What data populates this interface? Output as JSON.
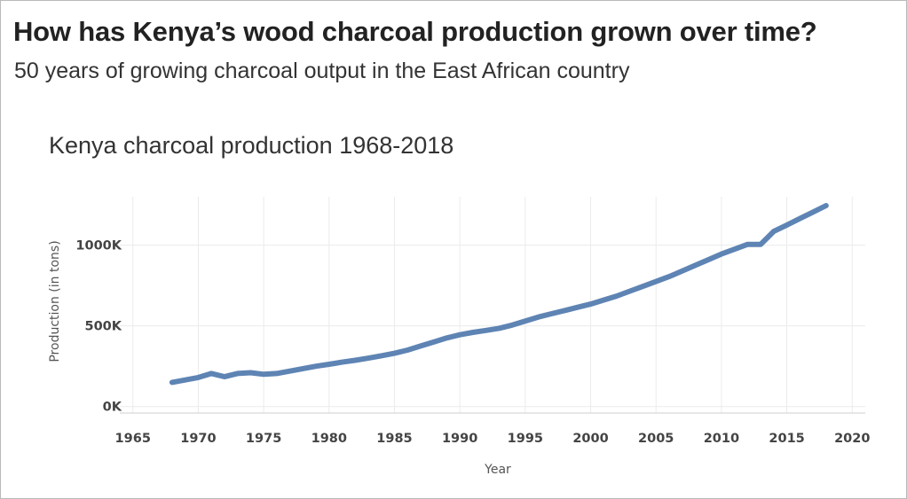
{
  "header": {
    "title": "How has Kenya’s wood charcoal production grown over time?",
    "subtitle": "50 years of growing charcoal output in the East African country"
  },
  "chart_data": {
    "type": "line",
    "title": "Kenya charcoal production 1968-2018",
    "xlabel": "Year",
    "ylabel": "Production (in tons)",
    "xlim": [
      1964,
      2021
    ],
    "ylim": [
      -40000,
      1300000
    ],
    "x_ticks": [
      1965,
      1970,
      1975,
      1980,
      1985,
      1990,
      1995,
      2000,
      2005,
      2010,
      2015,
      2020
    ],
    "x_tick_labels": [
      "1965",
      "1970",
      "1975",
      "1980",
      "1985",
      "1990",
      "1995",
      "2000",
      "2005",
      "2010",
      "2015",
      "2020"
    ],
    "y_ticks": [
      0,
      500000,
      1000000
    ],
    "y_tick_labels": [
      "0K",
      "500K",
      "1000K"
    ],
    "grid": true,
    "color": "#5e84b4",
    "series": [
      {
        "x": [
          1968,
          1969,
          1970,
          1971,
          1972,
          1973,
          1974,
          1975,
          1976,
          1977,
          1978,
          1979,
          1980,
          1981,
          1982,
          1983,
          1984,
          1985,
          1986,
          1987,
          1988,
          1989,
          1990,
          1991,
          1992,
          1993,
          1994,
          1995,
          1996,
          1997,
          1998,
          1999,
          2000,
          2001,
          2002,
          2003,
          2004,
          2005,
          2006,
          2007,
          2008,
          2009,
          2010,
          2011,
          2012,
          2013,
          2014,
          2015,
          2016,
          2017,
          2018
        ],
        "y": [
          150000,
          165000,
          180000,
          205000,
          185000,
          205000,
          210000,
          200000,
          205000,
          220000,
          235000,
          250000,
          262000,
          275000,
          287000,
          300000,
          315000,
          330000,
          350000,
          375000,
          400000,
          425000,
          445000,
          460000,
          472000,
          485000,
          505000,
          530000,
          555000,
          575000,
          595000,
          615000,
          635000,
          660000,
          685000,
          715000,
          745000,
          775000,
          805000,
          840000,
          875000,
          910000,
          945000,
          975000,
          1005000,
          1005000,
          1085000,
          1125000,
          1165000,
          1205000,
          1245000
        ]
      }
    ]
  }
}
